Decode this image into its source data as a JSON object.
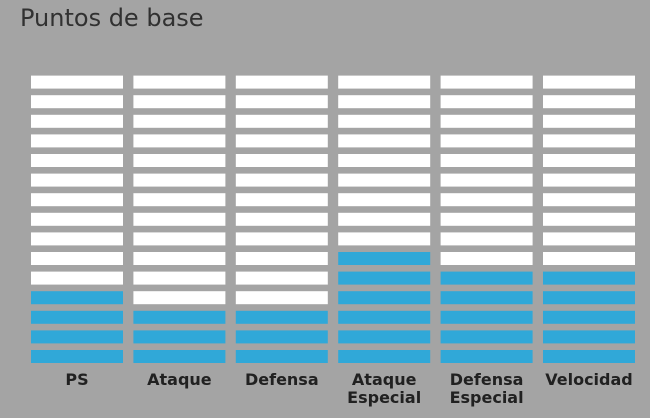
{
  "page": {
    "title": "Puntos de base"
  },
  "colors": {
    "background": "#a4a4a4",
    "filled_segment": "#30a8d8",
    "empty_segment": "#ffffff",
    "text": "#212121"
  },
  "chart_data": {
    "type": "bar",
    "title": "Puntos de base",
    "segments_per_bar": 15,
    "categories": [
      "PS",
      "Ataque",
      "Defensa",
      "Ataque Especial",
      "Defensa Especial",
      "Velocidad"
    ],
    "category_labels": [
      "PS",
      "Ataque",
      "Defensa",
      "Ataque\nEspecial",
      "Defensa\nEspecial",
      "Velocidad"
    ],
    "values": [
      4,
      3,
      3,
      6,
      5,
      5
    ],
    "ylim": [
      0,
      15
    ],
    "grid": false,
    "legend": "none"
  }
}
